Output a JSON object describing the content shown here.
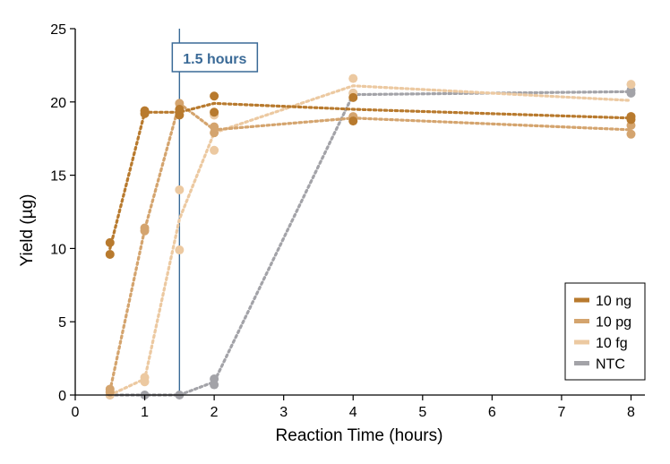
{
  "chart_data": {
    "type": "line",
    "xlabel": "Reaction Time (hours)",
    "ylabel": "Yield (µg)",
    "xlim": [
      0,
      8.2
    ],
    "ylim": [
      0,
      25
    ],
    "xticks": [
      0,
      1,
      2,
      3,
      4,
      5,
      6,
      7,
      8
    ],
    "yticks": [
      0,
      5,
      10,
      15,
      20,
      25
    ],
    "grid": false,
    "legend_position": "bottom-right",
    "annotation": {
      "text": "1.5 hours",
      "x": 1.5,
      "color": "#3a6a97"
    },
    "series": [
      {
        "name": "10 ng",
        "color": "#b87a2e",
        "mean": [
          [
            0.5,
            10.0
          ],
          [
            1,
            19.3
          ],
          [
            1.5,
            19.3
          ],
          [
            2,
            19.9
          ],
          [
            4,
            19.5
          ],
          [
            8,
            18.9
          ]
        ],
        "points": [
          [
            0.5,
            10.4
          ],
          [
            0.5,
            9.6
          ],
          [
            1,
            19.4
          ],
          [
            1,
            19.2
          ],
          [
            1.5,
            19.5
          ],
          [
            1.5,
            19.1
          ],
          [
            2,
            20.4
          ],
          [
            2,
            19.3
          ],
          [
            4,
            20.3
          ],
          [
            4,
            18.7
          ],
          [
            8,
            19.0
          ],
          [
            8,
            18.8
          ]
        ]
      },
      {
        "name": "10 pg",
        "color": "#d4a46e",
        "mean": [
          [
            0.5,
            0.3
          ],
          [
            1,
            11.3
          ],
          [
            1.5,
            19.9
          ],
          [
            2,
            18.1
          ],
          [
            4,
            18.9
          ],
          [
            8,
            18.1
          ]
        ],
        "points": [
          [
            0.5,
            0.4
          ],
          [
            0.5,
            0.2
          ],
          [
            1,
            11.4
          ],
          [
            1,
            11.2
          ],
          [
            1.5,
            19.9
          ],
          [
            2,
            18.3
          ],
          [
            2,
            17.9
          ],
          [
            4,
            19.0
          ],
          [
            8,
            18.4
          ],
          [
            8,
            17.8
          ]
        ]
      },
      {
        "name": "10 fg",
        "color": "#ecc9a1",
        "mean": [
          [
            0.5,
            0.0
          ],
          [
            1,
            1.1
          ],
          [
            1.5,
            12.0
          ],
          [
            2,
            17.9
          ],
          [
            4,
            21.1
          ],
          [
            8,
            20.1
          ]
        ],
        "points": [
          [
            0.5,
            0.0
          ],
          [
            1,
            1.2
          ],
          [
            1,
            0.9
          ],
          [
            1.5,
            14.0
          ],
          [
            1.5,
            9.9
          ],
          [
            2,
            19.1
          ],
          [
            2,
            16.7
          ],
          [
            4,
            21.6
          ],
          [
            4,
            20.6
          ],
          [
            8,
            21.2
          ],
          [
            8,
            19.0
          ]
        ]
      },
      {
        "name": "NTC",
        "color": "#a3a3a8",
        "mean": [
          [
            0.5,
            0.0
          ],
          [
            1,
            0.0
          ],
          [
            1.5,
            0.0
          ],
          [
            2,
            0.9
          ],
          [
            4,
            20.5
          ],
          [
            8,
            20.7
          ]
        ],
        "points": [
          [
            0.5,
            0.0
          ],
          [
            1,
            0.0
          ],
          [
            1.5,
            0.0
          ],
          [
            2,
            1.1
          ],
          [
            2,
            0.7
          ],
          [
            4,
            20.6
          ],
          [
            8,
            20.6
          ],
          [
            8,
            20.8
          ]
        ]
      }
    ]
  }
}
